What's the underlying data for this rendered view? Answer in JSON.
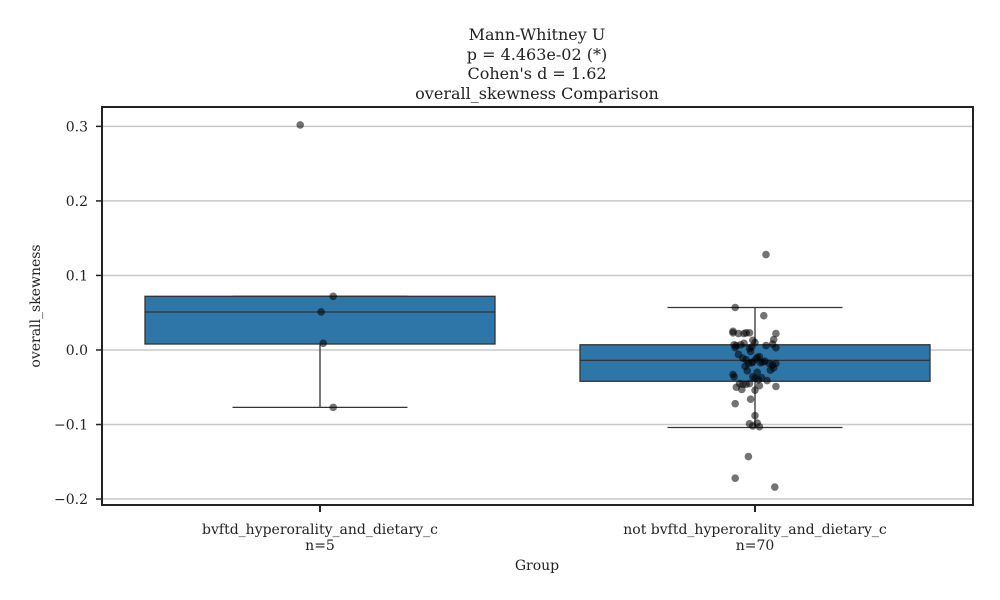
{
  "chart_data": {
    "type": "box",
    "title_lines": [
      "Mann-Whitney U",
      "p = 4.463e-02 (*)",
      "Cohen's d = 1.62",
      "overall_skewness Comparison"
    ],
    "xlabel": "Group",
    "ylabel": "overall_skewness",
    "ylim": [
      -0.208,
      0.326
    ],
    "yticks": [
      -0.2,
      -0.1,
      0.0,
      0.1,
      0.2,
      0.3
    ],
    "ytick_labels": [
      "−0.2",
      "−0.1",
      "0.0",
      "0.1",
      "0.2",
      "0.3"
    ],
    "grid": "horizontal",
    "box_color": "#2e75a8",
    "point_color": "#000000",
    "groups": [
      {
        "name": "bvftd_hyperorality_and_dietary_c",
        "n_label": "n=5",
        "q1": 0.008,
        "median": 0.051,
        "q3": 0.072,
        "whisker_low": -0.077,
        "whisker_high": 0.072,
        "points": [
          {
            "x": -0.18,
            "y": 0.302
          },
          {
            "x": 0.12,
            "y": 0.072
          },
          {
            "x": 0.01,
            "y": 0.051
          },
          {
            "x": 0.03,
            "y": 0.009
          },
          {
            "x": 0.12,
            "y": -0.077
          }
        ]
      },
      {
        "name": "not bvftd_hyperorality_and_dietary_c",
        "n_label": "n=70",
        "q1": -0.042,
        "median": -0.014,
        "q3": 0.007,
        "whisker_low": -0.104,
        "whisker_high": 0.057,
        "points": [
          {
            "x": 0.1,
            "y": 0.128
          },
          {
            "x": -0.18,
            "y": 0.057
          },
          {
            "x": 0.08,
            "y": 0.046
          },
          {
            "x": -0.2,
            "y": 0.023
          },
          {
            "x": -0.15,
            "y": 0.022
          },
          {
            "x": -0.08,
            "y": 0.023
          },
          {
            "x": -0.05,
            "y": 0.023
          },
          {
            "x": 0.19,
            "y": 0.022
          },
          {
            "x": -0.2,
            "y": 0.025
          },
          {
            "x": -0.1,
            "y": 0.022
          },
          {
            "x": 0.17,
            "y": 0.014
          },
          {
            "x": -0.02,
            "y": 0.013
          },
          {
            "x": 0.0,
            "y": 0.01
          },
          {
            "x": 0.16,
            "y": 0.008
          },
          {
            "x": -0.13,
            "y": 0.007
          },
          {
            "x": -0.1,
            "y": 0.009
          },
          {
            "x": -0.19,
            "y": 0.007
          },
          {
            "x": -0.17,
            "y": 0.006
          },
          {
            "x": 0.19,
            "y": 0.003
          },
          {
            "x": -0.18,
            "y": 0.003
          },
          {
            "x": -0.05,
            "y": 0.002
          },
          {
            "x": -0.04,
            "y": -0.002
          },
          {
            "x": -0.15,
            "y": -0.006
          },
          {
            "x": -0.11,
            "y": -0.011
          },
          {
            "x": 0.04,
            "y": -0.009
          },
          {
            "x": 0.01,
            "y": -0.012
          },
          {
            "x": 0.02,
            "y": -0.01
          },
          {
            "x": -0.08,
            "y": -0.013
          },
          {
            "x": -0.02,
            "y": -0.016
          },
          {
            "x": 0.09,
            "y": -0.015
          },
          {
            "x": 0.05,
            "y": -0.017
          },
          {
            "x": 0.13,
            "y": -0.018
          },
          {
            "x": 0.19,
            "y": -0.018
          },
          {
            "x": 0.16,
            "y": -0.02
          },
          {
            "x": -0.03,
            "y": -0.017
          },
          {
            "x": 0.07,
            "y": -0.016
          },
          {
            "x": -0.06,
            "y": -0.018
          },
          {
            "x": 0.17,
            "y": -0.024
          },
          {
            "x": 0.14,
            "y": -0.027
          },
          {
            "x": -0.07,
            "y": -0.028
          },
          {
            "x": 0.02,
            "y": -0.03
          },
          {
            "x": -0.2,
            "y": -0.033
          },
          {
            "x": -0.19,
            "y": -0.036
          },
          {
            "x": -0.02,
            "y": -0.036
          },
          {
            "x": 0.0,
            "y": -0.038
          },
          {
            "x": 0.06,
            "y": -0.037
          },
          {
            "x": 0.03,
            "y": -0.04
          },
          {
            "x": 0.11,
            "y": -0.041
          },
          {
            "x": -0.14,
            "y": -0.045
          },
          {
            "x": -0.11,
            "y": -0.046
          },
          {
            "x": -0.08,
            "y": -0.046
          },
          {
            "x": -0.05,
            "y": -0.045
          },
          {
            "x": -0.17,
            "y": -0.05
          },
          {
            "x": 0.04,
            "y": -0.048
          },
          {
            "x": 0.19,
            "y": -0.049
          },
          {
            "x": -0.12,
            "y": -0.053
          },
          {
            "x": 0.0,
            "y": -0.054
          },
          {
            "x": -0.04,
            "y": -0.066
          },
          {
            "x": -0.18,
            "y": -0.072
          },
          {
            "x": 0.0,
            "y": -0.088
          },
          {
            "x": -0.05,
            "y": -0.099
          },
          {
            "x": 0.02,
            "y": -0.098
          },
          {
            "x": 0.04,
            "y": -0.103
          },
          {
            "x": -0.02,
            "y": -0.102
          },
          {
            "x": -0.06,
            "y": -0.143
          },
          {
            "x": -0.18,
            "y": -0.172
          },
          {
            "x": 0.18,
            "y": -0.184
          },
          {
            "x": -0.03,
            "y": 0.004
          },
          {
            "x": 0.1,
            "y": 0.006
          },
          {
            "x": -0.09,
            "y": -0.022
          }
        ]
      }
    ]
  }
}
